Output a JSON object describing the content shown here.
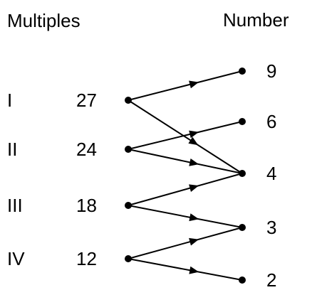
{
  "headers": {
    "left": "Multiples",
    "right": "Number"
  },
  "left_nodes": [
    {
      "id": "I",
      "roman": "I",
      "value": "27"
    },
    {
      "id": "II",
      "roman": "II",
      "value": "24"
    },
    {
      "id": "III",
      "roman": "III",
      "value": "18"
    },
    {
      "id": "IV",
      "roman": "IV",
      "value": "12"
    }
  ],
  "right_nodes": [
    {
      "id": "9",
      "value": "9"
    },
    {
      "id": "6",
      "value": "6"
    },
    {
      "id": "4",
      "value": "4"
    },
    {
      "id": "3",
      "value": "3"
    },
    {
      "id": "2",
      "value": "2"
    }
  ],
  "edges": [
    {
      "from": "I",
      "to": "9"
    },
    {
      "from": "I",
      "to": "4"
    },
    {
      "from": "II",
      "to": "6"
    },
    {
      "from": "II",
      "to": "4"
    },
    {
      "from": "III",
      "to": "4"
    },
    {
      "from": "III",
      "to": "3"
    },
    {
      "from": "IV",
      "to": "3"
    },
    {
      "from": "IV",
      "to": "2"
    }
  ],
  "colors": {
    "ink": "#000000",
    "background": "#ffffff"
  }
}
